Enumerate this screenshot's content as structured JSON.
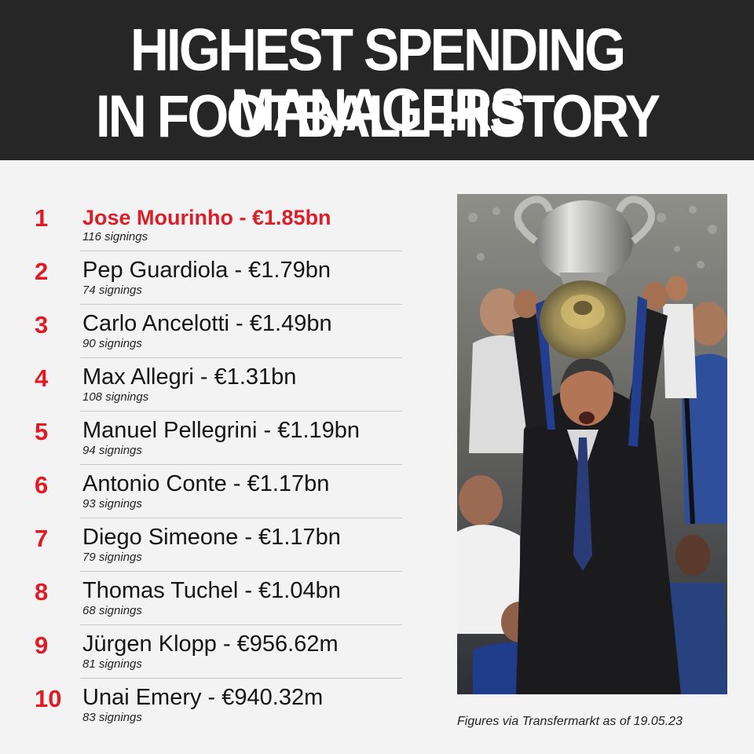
{
  "title": {
    "line1": "HIGHEST SPENDING MANAGERS",
    "line2": "IN FOOTBALL HISTORY"
  },
  "rankings": [
    {
      "rank": "1",
      "name": "Jose Mourinho - €1.85bn",
      "signings": "116 signings"
    },
    {
      "rank": "2",
      "name": "Pep Guardiola - €1.79bn",
      "signings": "74 signings"
    },
    {
      "rank": "3",
      "name": "Carlo Ancelotti - €1.49bn",
      "signings": "90 signings"
    },
    {
      "rank": "4",
      "name": "Max Allegri - €1.31bn",
      "signings": "108 signings"
    },
    {
      "rank": "5",
      "name": "Manuel Pellegrini - €1.19bn",
      "signings": "94 signings"
    },
    {
      "rank": "6",
      "name": "Antonio Conte - €1.17bn",
      "signings": "93 signings"
    },
    {
      "rank": "7",
      "name": "Diego Simeone - €1.17bn",
      "signings": "79 signings"
    },
    {
      "rank": "8",
      "name": "Thomas Tuchel - €1.04bn",
      "signings": "68 signings"
    },
    {
      "rank": "9",
      "name": "Jürgen Klopp - €956.62m",
      "signings": "81 signings"
    },
    {
      "rank": "10",
      "name": "Unai Emery - €940.32m",
      "signings": "83 signings"
    }
  ],
  "credit": "Figures via Transfermarkt as of 19.05.23",
  "colors": {
    "header_bg": "#262626",
    "accent_red": "#e01b24",
    "page_bg": "#f3f3f3"
  }
}
